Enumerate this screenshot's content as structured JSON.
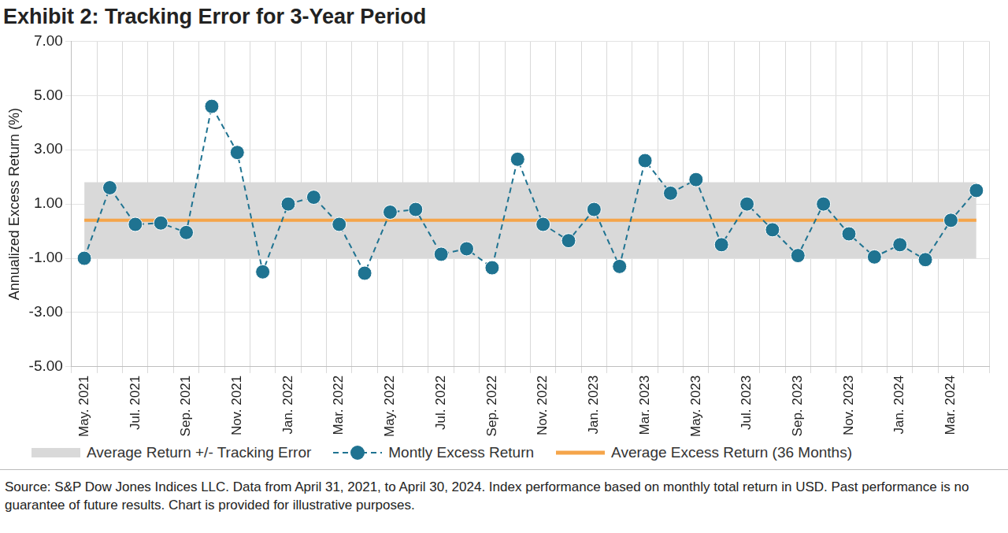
{
  "chart_data": {
    "type": "line",
    "title": "Exhibit 2: Tracking Error for 3-Year Period",
    "y_label": "Annualized Excess Return (%)",
    "source": "Source: S&P Dow Jones Indices LLC. Data from April 31, 2021, to April 30, 2024. Index performance based on monthly total return in USD. Past performance is no guarantee of future results. Chart is provided for illustrative purposes.",
    "categories": [
      "May. 2021",
      null,
      "Jul. 2021",
      null,
      "Sep. 2021",
      null,
      "Nov. 2021",
      null,
      "Jan. 2022",
      null,
      "Mar. 2022",
      null,
      "May. 2022",
      null,
      "Jul. 2022",
      null,
      "Sep. 2022",
      null,
      "Nov. 2022",
      null,
      "Jan. 2023",
      null,
      "Mar. 2023",
      null,
      "May. 2023",
      null,
      "Jul. 2023",
      null,
      "Sep. 2023",
      null,
      "Nov. 2023",
      null,
      "Jan. 2024",
      null,
      "Mar. 2024",
      null
    ],
    "series": [
      {
        "name": "Montly Excess Return",
        "color": "#1f7391",
        "marker": "circle",
        "line_style": "dashed",
        "values": [
          -1.0,
          1.6,
          0.25,
          0.3,
          -0.05,
          4.6,
          2.9,
          -1.5,
          1.0,
          1.25,
          0.25,
          -1.55,
          0.7,
          0.8,
          -0.85,
          -0.65,
          -1.35,
          2.65,
          0.25,
          -0.35,
          0.8,
          -1.3,
          2.6,
          1.4,
          1.9,
          -0.5,
          1.0,
          0.05,
          -0.9,
          1.0,
          -0.1,
          -0.95,
          -0.5,
          -1.05,
          0.4,
          1.5
        ]
      },
      {
        "name": "Average Excess Return (36 Months)",
        "color": "#f5a54a",
        "line_style": "solid",
        "values": [
          0.4,
          0.4,
          0.4,
          0.4,
          0.4,
          0.4,
          0.4,
          0.4,
          0.4,
          0.4,
          0.4,
          0.4,
          0.4,
          0.4,
          0.4,
          0.4,
          0.4,
          0.4,
          0.4,
          0.4,
          0.4,
          0.4,
          0.4,
          0.4,
          0.4,
          0.4,
          0.4,
          0.4,
          0.4,
          0.4,
          0.4,
          0.4,
          0.4,
          0.4,
          0.4,
          0.4
        ]
      }
    ],
    "band": {
      "name": "Average Return +/- Tracking Error",
      "color": "#d9d9d9",
      "tracking_error": 1.4
    },
    "ylim": [
      -5,
      7
    ],
    "yticks": [
      {
        "value": -5,
        "label": "-5.00"
      },
      {
        "value": -3,
        "label": "-3.00"
      },
      {
        "value": -1,
        "label": "-1.00"
      },
      {
        "value": 1,
        "label": "1.00"
      },
      {
        "value": 3,
        "label": "3.00"
      },
      {
        "value": 5,
        "label": "5.00"
      },
      {
        "value": 7,
        "label": "7.00"
      }
    ],
    "grid": true,
    "legend": "bottom"
  }
}
